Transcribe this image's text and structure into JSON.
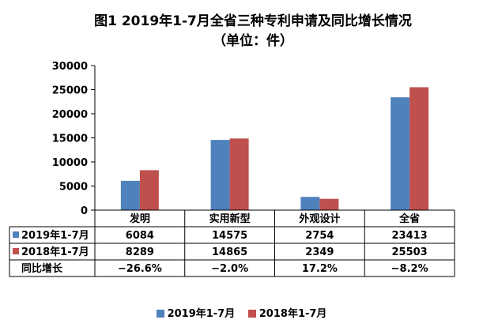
{
  "title_line1": "图1  2019年1-7月全省三种专利申请及同比增长情况",
  "title_line2": "（单位：件）",
  "colors": {
    "series1": "#4f81bd",
    "series2": "#c0504d",
    "grid": "#000000"
  },
  "table": {
    "growth_label": "同比增长",
    "growth_values": [
      "−26.6%",
      "−2.0%",
      "17.2%",
      "−8.2%"
    ]
  },
  "chart_data": {
    "type": "bar",
    "title": "图1  2019年1-7月全省三种专利申请及同比增长情况（单位：件）",
    "categories": [
      "发明",
      "实用新型",
      "外观设计",
      "全省"
    ],
    "series": [
      {
        "name": "2019年1-7月",
        "values": [
          6084,
          14575,
          2754,
          23413
        ]
      },
      {
        "name": "2018年1-7月",
        "values": [
          8289,
          14865,
          2349,
          25503
        ]
      }
    ],
    "ylim": [
      0,
      30000
    ],
    "yticks": [
      0,
      5000,
      10000,
      15000,
      20000,
      25000,
      30000
    ],
    "grid": false,
    "legend_position": "bottom"
  }
}
